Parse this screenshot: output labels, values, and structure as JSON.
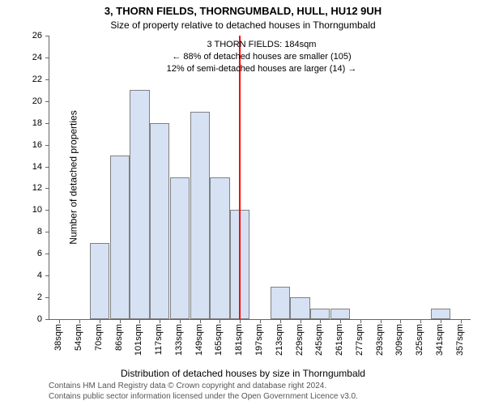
{
  "title": {
    "main": "3, THORN FIELDS, THORNGUMBALD, HULL, HU12 9UH",
    "sub": "Size of property relative to detached houses in Thorngumbald"
  },
  "chart": {
    "type": "histogram",
    "ylabel": "Number of detached properties",
    "xlabel": "Distribution of detached houses by size in Thorngumbald",
    "ylim": [
      0,
      26
    ],
    "ytick_step": 2,
    "bar_fill": "#d6e2f3",
    "bar_stroke": "#808080",
    "background": "#ffffff",
    "axis_color": "#666666",
    "x_categories": [
      "38sqm",
      "54sqm",
      "70sqm",
      "86sqm",
      "101sqm",
      "117sqm",
      "133sqm",
      "149sqm",
      "165sqm",
      "181sqm",
      "197sqm",
      "213sqm",
      "229sqm",
      "245sqm",
      "261sqm",
      "277sqm",
      "293sqm",
      "309sqm",
      "325sqm",
      "341sqm",
      "357sqm"
    ],
    "values": [
      0,
      0,
      7,
      15,
      21,
      18,
      13,
      19,
      13,
      10,
      0,
      3,
      2,
      1,
      1,
      0,
      0,
      0,
      0,
      1,
      0
    ],
    "reference_line": {
      "index": 9,
      "color": "#ff0000",
      "width": 2
    },
    "annotation": {
      "line1": "3 THORN FIELDS: 184sqm",
      "line2": "← 88% of detached houses are smaller (105)",
      "line3": "12% of semi-detached houses are larger (14) →",
      "font_size": 11
    }
  },
  "footer": {
    "line1": "Contains HM Land Registry data © Crown copyright and database right 2024.",
    "line2": "Contains public sector information licensed under the Open Government Licence v3.0."
  }
}
